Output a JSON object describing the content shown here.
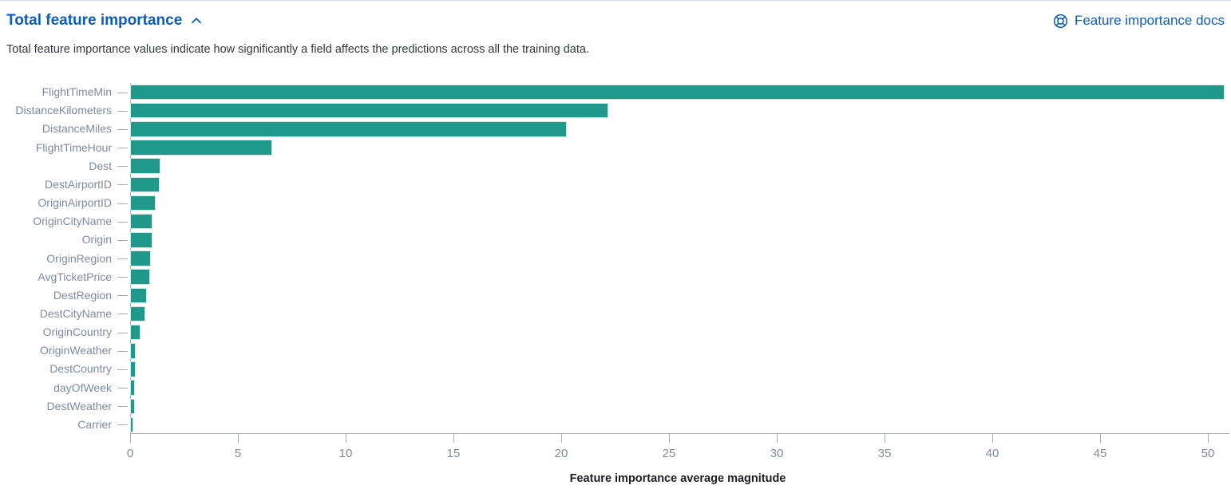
{
  "header": {
    "title": "Total feature importance",
    "docs_link_label": "Feature importance docs",
    "description": "Total feature importance values indicate how significantly a field affects the predictions across all the training data."
  },
  "colors": {
    "bar": "#20998A",
    "link_blue": "#0B5CC5",
    "axis_line": "#A2ACBD",
    "axis_label_text": "#7D8AA2",
    "description_text": "#343741",
    "axis_title_text": "#1D1E24"
  },
  "chart_data": {
    "type": "bar",
    "orientation": "horizontal",
    "title": "",
    "xlabel": "Feature importance average magnitude",
    "ylabel": "",
    "grid": false,
    "legend": "none",
    "xlim": [
      0,
      51
    ],
    "x_ticks": [
      0,
      5,
      10,
      15,
      20,
      25,
      30,
      35,
      40,
      45,
      50
    ],
    "categories": [
      "FlightTimeMin",
      "DistanceKilometers",
      "DistanceMiles",
      "FlightTimeHour",
      "Dest",
      "DestAirportID",
      "OriginAirportID",
      "OriginCityName",
      "Origin",
      "OriginRegion",
      "AvgTicketPrice",
      "DestRegion",
      "DestCityName",
      "OriginCountry",
      "OriginWeather",
      "DestCountry",
      "dayOfWeek",
      "DestWeather",
      "Carrier"
    ],
    "values": [
      50.7,
      22.1,
      20.2,
      6.5,
      1.35,
      1.3,
      1.1,
      0.97,
      0.95,
      0.9,
      0.85,
      0.72,
      0.62,
      0.4,
      0.2,
      0.17,
      0.15,
      0.14,
      0.05
    ]
  }
}
